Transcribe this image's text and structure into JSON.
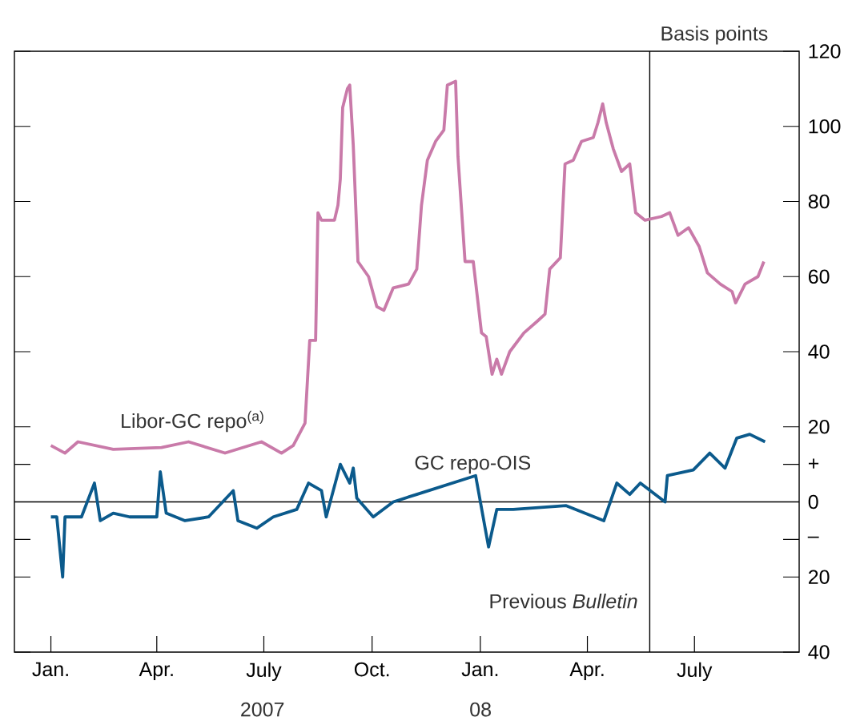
{
  "chart_data": {
    "type": "line",
    "ylabel": "Basis points",
    "xlim": [
      "2006-12-01",
      "2008-09-28"
    ],
    "ylim": [
      -40,
      120
    ],
    "xticks": [
      {
        "value": "2007-01-01",
        "label": "Jan."
      },
      {
        "value": "2007-04-01",
        "label": "Apr."
      },
      {
        "value": "2007-07-01",
        "label": "July"
      },
      {
        "value": "2007-10-01",
        "label": "Oct."
      },
      {
        "value": "2008-01-01",
        "label": "Jan."
      },
      {
        "value": "2008-04-01",
        "label": "Apr."
      },
      {
        "value": "2008-07-01",
        "label": "July"
      }
    ],
    "yticks": [
      {
        "value": -40,
        "label": "40"
      },
      {
        "value": -20,
        "label": "20"
      },
      {
        "value": -10,
        "label": "–"
      },
      0,
      {
        "value": 10,
        "label": "+"
      },
      20,
      40,
      60,
      80,
      100,
      120
    ],
    "line_style": "solid",
    "series": [
      {
        "name": "Libor-GC repo$^{(a)}$",
        "color": "#c97aa9",
        "x": [
          "2007-01-01",
          "2007-01-13",
          "2007-01-24",
          "2007-02-23",
          "2007-04-05",
          "2007-04-28",
          "2007-05-29",
          "2007-06-29",
          "2007-07-16",
          "2007-07-26",
          "2007-08-05",
          "2007-08-09",
          "2007-08-14",
          "2007-08-16",
          "2007-08-19",
          "2007-08-30",
          "2007-09-02",
          "2007-09-04",
          "2007-09-06",
          "2007-09-10",
          "2007-09-12",
          "2007-09-15",
          "2007-09-19",
          "2007-09-28",
          "2007-10-05",
          "2007-10-11",
          "2007-10-19",
          "2007-11-01",
          "2007-11-08",
          "2007-11-12",
          "2007-11-17",
          "2007-11-24",
          "2007-12-01",
          "2007-12-04",
          "2007-12-11",
          "2007-12-13",
          "2007-12-19",
          "2007-12-26",
          "2008-01-02",
          "2008-01-06",
          "2008-01-11",
          "2008-01-15",
          "2008-01-19",
          "2008-01-26",
          "2008-02-07",
          "2008-02-18",
          "2008-02-25",
          "2008-02-29",
          "2008-03-09",
          "2008-03-13",
          "2008-03-20",
          "2008-03-27",
          "2008-04-06",
          "2008-04-10",
          "2008-04-14",
          "2008-04-17",
          "2008-04-23",
          "2008-04-30",
          "2008-05-07",
          "2008-05-12",
          "2008-05-20",
          "2008-06-03",
          "2008-06-10",
          "2008-06-17",
          "2008-06-26",
          "2008-07-05",
          "2008-07-12",
          "2008-07-23",
          "2008-08-02",
          "2008-08-05",
          "2008-08-13",
          "2008-08-24",
          "2008-08-29"
        ],
        "values": [
          15,
          13,
          16,
          14,
          14.5,
          16,
          13,
          16,
          13,
          15,
          21,
          43,
          43,
          77,
          75,
          75,
          79,
          86,
          105,
          110,
          111,
          95,
          64,
          60,
          52,
          51,
          57,
          58,
          62,
          79,
          91,
          96,
          99,
          111,
          112,
          92,
          64,
          64,
          45,
          44,
          34,
          38,
          34,
          40,
          45,
          48,
          50,
          62,
          65,
          90,
          91,
          96,
          97,
          101,
          106,
          101,
          94,
          88,
          90,
          77,
          75,
          76,
          77,
          71,
          73,
          68,
          61,
          58,
          56,
          53,
          58,
          60,
          64
        ]
      },
      {
        "name": "GC repo-OIS",
        "color": "#0b5a8c",
        "x": [
          "2007-01-01",
          "2007-01-06",
          "2007-01-11",
          "2007-01-13",
          "2007-01-27",
          "2007-02-07",
          "2007-02-12",
          "2007-02-23",
          "2007-03-09",
          "2007-04-01",
          "2007-04-04",
          "2007-04-09",
          "2007-04-25",
          "2007-05-15",
          "2007-06-05",
          "2007-06-09",
          "2007-06-25",
          "2007-07-09",
          "2007-07-29",
          "2007-08-08",
          "2007-08-19",
          "2007-08-23",
          "2007-09-04",
          "2007-09-12",
          "2007-09-15",
          "2007-09-18",
          "2007-10-02",
          "2007-10-19",
          "2007-11-08",
          "2007-12-28",
          "2008-01-08",
          "2008-01-15",
          "2008-01-29",
          "2008-03-14",
          "2008-04-15",
          "2008-04-26",
          "2008-05-07",
          "2008-05-16",
          "2008-06-06",
          "2008-06-08",
          "2008-06-30",
          "2008-07-14",
          "2008-07-27",
          "2008-08-06",
          "2008-08-17",
          "2008-08-30"
        ],
        "values": [
          -4,
          -4,
          -20,
          -4,
          -4,
          5,
          -5,
          -3,
          -4,
          -4,
          8,
          -3,
          -5,
          -4,
          3,
          -5,
          -7,
          -4,
          -2,
          5,
          3,
          -4,
          10,
          5,
          9,
          1,
          -4,
          0,
          2,
          7,
          -12,
          -2,
          -2,
          -1,
          -5,
          5,
          2,
          5,
          0,
          7,
          8.5,
          13,
          9,
          17,
          18,
          16
        ]
      }
    ],
    "ref_lines": [
      {
        "axis": "y",
        "value": 0
      },
      {
        "axis": "x",
        "value": "2008-05-24",
        "label": "Previous *Bulletin*"
      }
    ],
    "annotations": [
      "2007",
      "08"
    ]
  }
}
